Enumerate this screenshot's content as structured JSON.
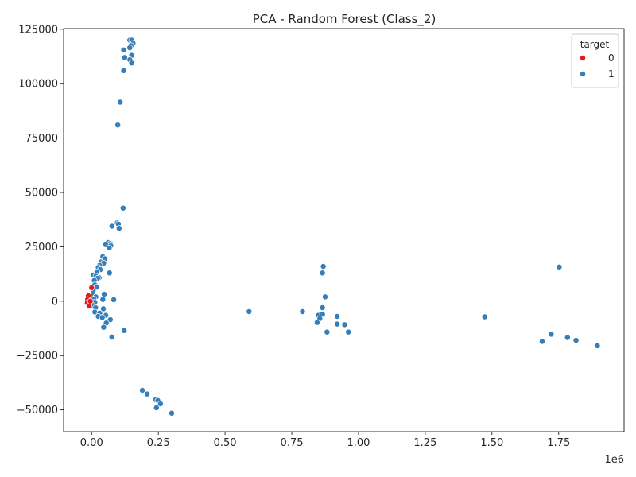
{
  "chart_data": {
    "type": "scatter",
    "title": "PCA - Random Forest (Class_2)",
    "xlabel": "",
    "ylabel": "",
    "x_offset_text": "1e6",
    "xlim": [
      -0.105,
      1.995
    ],
    "ylim": [
      -60000,
      125300
    ],
    "x_ticks": [
      {
        "value": 0.0,
        "label": "0.00"
      },
      {
        "value": 0.25,
        "label": "0.25"
      },
      {
        "value": 0.5,
        "label": "0.50"
      },
      {
        "value": 0.75,
        "label": "0.75"
      },
      {
        "value": 1.0,
        "label": "1.00"
      },
      {
        "value": 1.25,
        "label": "1.25"
      },
      {
        "value": 1.5,
        "label": "1.50"
      },
      {
        "value": 1.75,
        "label": "1.75"
      }
    ],
    "y_ticks": [
      {
        "value": -50000,
        "label": "−50000"
      },
      {
        "value": -25000,
        "label": "−25000"
      },
      {
        "value": 0,
        "label": "0"
      },
      {
        "value": 25000,
        "label": "25000"
      },
      {
        "value": 50000,
        "label": "50000"
      },
      {
        "value": 75000,
        "label": "75000"
      },
      {
        "value": 100000,
        "label": "100000"
      },
      {
        "value": 125000,
        "label": "125000"
      }
    ],
    "grid": false,
    "legend": {
      "title": "target",
      "position": "top-right",
      "entries": [
        {
          "label": "0",
          "color": "#e41a1c"
        },
        {
          "label": "1",
          "color": "#377eb8"
        }
      ]
    },
    "series": [
      {
        "name": "1",
        "color": "#377eb8",
        "points": [
          [
            0.143,
            120000
          ],
          [
            0.15,
            120000
          ],
          [
            0.155,
            118500
          ],
          [
            0.148,
            117500
          ],
          [
            0.143,
            116500
          ],
          [
            0.12,
            115500
          ],
          [
            0.15,
            113000
          ],
          [
            0.143,
            111000
          ],
          [
            0.124,
            112000
          ],
          [
            0.15,
            109500
          ],
          [
            0.12,
            106000
          ],
          [
            0.107,
            91500
          ],
          [
            0.098,
            81000
          ],
          [
            0.118,
            42800
          ],
          [
            0.096,
            36000
          ],
          [
            0.1,
            35500
          ],
          [
            0.076,
            34500
          ],
          [
            0.103,
            33500
          ],
          [
            0.062,
            27000
          ],
          [
            0.07,
            26500
          ],
          [
            0.053,
            26000
          ],
          [
            0.072,
            25500
          ],
          [
            0.066,
            24500
          ],
          [
            0.042,
            20500
          ],
          [
            0.05,
            19500
          ],
          [
            0.035,
            18000
          ],
          [
            0.045,
            17500
          ],
          [
            0.03,
            16500
          ],
          [
            0.025,
            15500
          ],
          [
            0.032,
            14500
          ],
          [
            0.02,
            13500
          ],
          [
            0.067,
            13000
          ],
          [
            0.006,
            12000
          ],
          [
            0.016,
            11500
          ],
          [
            0.028,
            10800
          ],
          [
            0.022,
            10500
          ],
          [
            0.01,
            9500
          ],
          [
            0.012,
            7500
          ],
          [
            0.02,
            6500
          ],
          [
            0.006,
            5000
          ],
          [
            0.047,
            3200
          ],
          [
            0.005,
            2500
          ],
          [
            0.016,
            2000
          ],
          [
            0.008,
            1000
          ],
          [
            0.042,
            800
          ],
          [
            0.083,
            700
          ],
          [
            0.012,
            -500
          ],
          [
            0.005,
            -2000
          ],
          [
            0.015,
            -3000
          ],
          [
            0.044,
            -3500
          ],
          [
            0.012,
            -5000
          ],
          [
            0.03,
            -5500
          ],
          [
            0.053,
            -6500
          ],
          [
            0.025,
            -7000
          ],
          [
            0.04,
            -7500
          ],
          [
            0.07,
            -8500
          ],
          [
            0.055,
            -10000
          ],
          [
            0.045,
            -12000
          ],
          [
            0.122,
            -13500
          ],
          [
            0.076,
            -16500
          ],
          [
            0.59,
            -4800
          ],
          [
            0.79,
            -4800
          ],
          [
            0.868,
            16000
          ],
          [
            0.865,
            13000
          ],
          [
            0.875,
            2000
          ],
          [
            0.865,
            -3000
          ],
          [
            0.85,
            -6500
          ],
          [
            0.865,
            -6000
          ],
          [
            0.92,
            -7000
          ],
          [
            0.855,
            -8000
          ],
          [
            0.845,
            -9800
          ],
          [
            0.92,
            -10500
          ],
          [
            0.948,
            -10800
          ],
          [
            0.882,
            -14200
          ],
          [
            0.962,
            -14200
          ],
          [
            1.473,
            -7200
          ],
          [
            1.752,
            15700
          ],
          [
            1.722,
            -15200
          ],
          [
            1.783,
            -16700
          ],
          [
            1.815,
            -18000
          ],
          [
            1.688,
            -18500
          ],
          [
            1.895,
            -20500
          ],
          [
            0.19,
            -41000
          ],
          [
            0.208,
            -42700
          ],
          [
            0.24,
            -45300
          ],
          [
            0.248,
            -45700
          ],
          [
            0.258,
            -47200
          ],
          [
            0.243,
            -49000
          ],
          [
            0.3,
            -51500
          ]
        ]
      },
      {
        "name": "0",
        "color": "#e41a1c",
        "points": [
          [
            0.0,
            6200
          ],
          [
            -0.012,
            2500
          ],
          [
            -0.015,
            800
          ],
          [
            -0.016,
            -800
          ],
          [
            -0.01,
            -2000
          ],
          [
            -0.005,
            0
          ]
        ]
      }
    ]
  }
}
